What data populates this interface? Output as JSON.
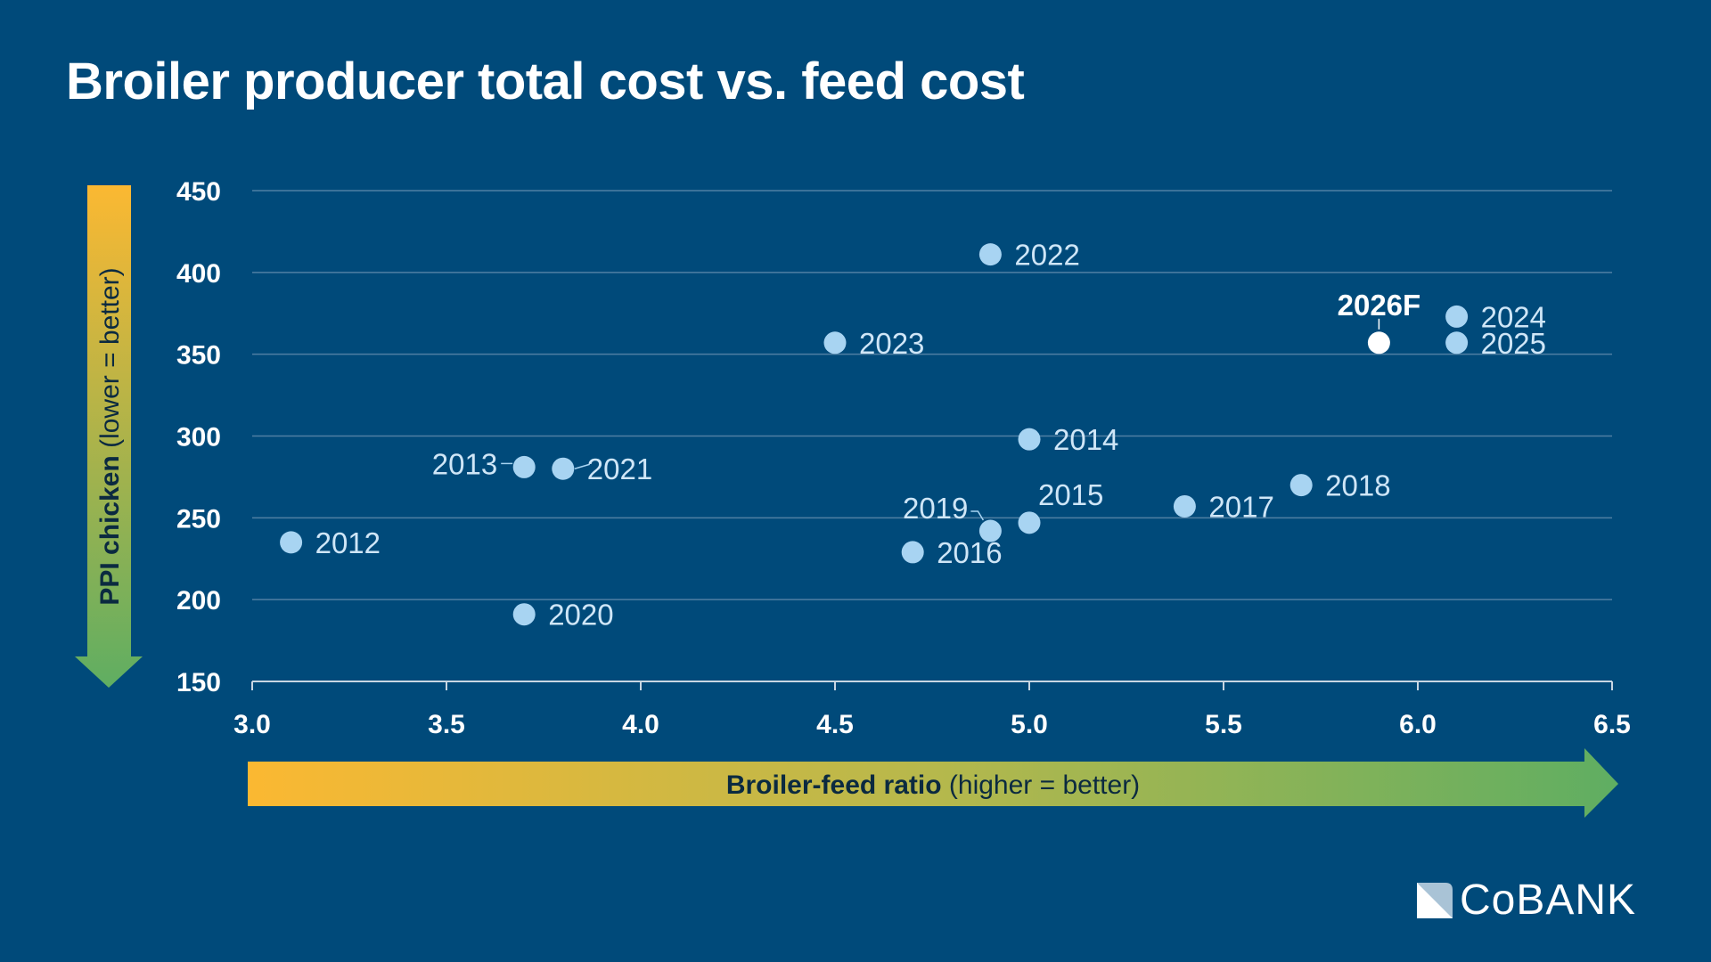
{
  "chart_data": {
    "type": "scatter",
    "title": "Broiler producer total cost vs. feed cost",
    "xlabel_bold": "Broiler-feed ratio",
    "xlabel_note": "(higher = better)",
    "ylabel_bold": "PPI chicken",
    "ylabel_note": "(lower = better)",
    "xlim": [
      3.0,
      6.5
    ],
    "ylim": [
      150,
      450
    ],
    "xticks": [
      "3.0",
      "3.5",
      "4.0",
      "4.5",
      "5.0",
      "5.5",
      "6.0",
      "6.5"
    ],
    "yticks": [
      "150",
      "200",
      "250",
      "300",
      "350",
      "400",
      "450"
    ],
    "grid": "horizontal",
    "point_color": "#a8d4f2",
    "forecast_color": "#ffffff",
    "points": [
      {
        "label": "2012",
        "x": 3.1,
        "y": 235
      },
      {
        "label": "2013",
        "x": 3.7,
        "y": 281
      },
      {
        "label": "2014",
        "x": 5.0,
        "y": 298
      },
      {
        "label": "2015",
        "x": 5.0,
        "y": 247
      },
      {
        "label": "2016",
        "x": 4.7,
        "y": 229
      },
      {
        "label": "2017",
        "x": 5.4,
        "y": 257
      },
      {
        "label": "2018",
        "x": 5.7,
        "y": 270
      },
      {
        "label": "2019",
        "x": 4.9,
        "y": 242
      },
      {
        "label": "2020",
        "x": 3.7,
        "y": 191
      },
      {
        "label": "2021",
        "x": 3.8,
        "y": 280
      },
      {
        "label": "2022",
        "x": 4.9,
        "y": 411
      },
      {
        "label": "2023",
        "x": 4.5,
        "y": 357
      },
      {
        "label": "2024",
        "x": 6.1,
        "y": 373
      },
      {
        "label": "2025",
        "x": 6.1,
        "y": 357
      },
      {
        "label": "2026F",
        "x": 5.9,
        "y": 357,
        "forecast": true
      }
    ]
  },
  "logo": {
    "text": "COBANK"
  }
}
